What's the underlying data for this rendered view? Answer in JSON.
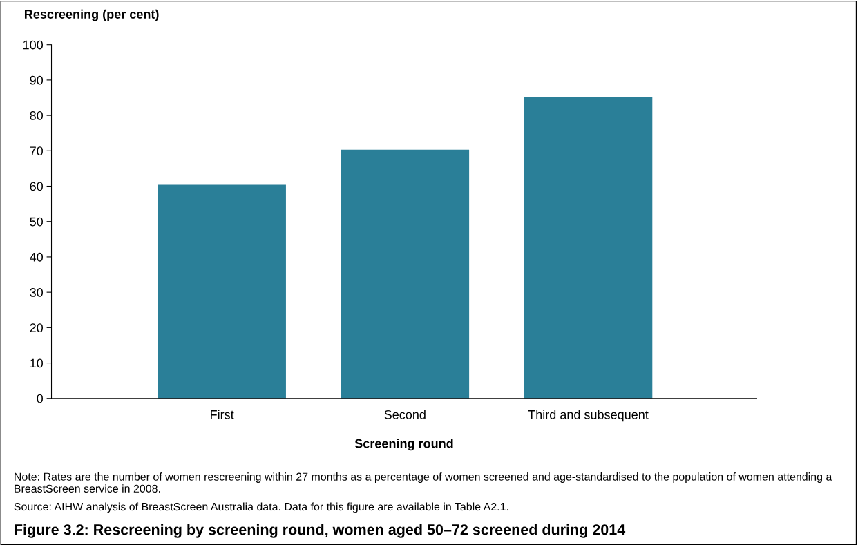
{
  "chart_data": {
    "type": "bar",
    "title": "Figure 3.2: Rescreening by screening round, women aged 50–72 screened during 2014",
    "xlabel": "Screening round",
    "ylabel": "Rescreening (per cent)",
    "categories": [
      "First",
      "Second",
      "Third and subsequent"
    ],
    "values": [
      60.4,
      70.3,
      85.2
    ],
    "color": "#2a7f98",
    "ylim": [
      0,
      100
    ],
    "yticks": [
      0,
      10,
      20,
      30,
      40,
      50,
      60,
      70,
      80,
      90,
      100
    ],
    "grid": false,
    "legend": false,
    "annotations": [
      "Note: Rates are the number of women rescreening within 27 months as a percentage of women screened and age-standardised to the population of women attending a BreastScreen service in 2008.",
      "Source: AIHW analysis of BreastScreen Australia data. Data for this figure are available in Table A2.1."
    ]
  }
}
